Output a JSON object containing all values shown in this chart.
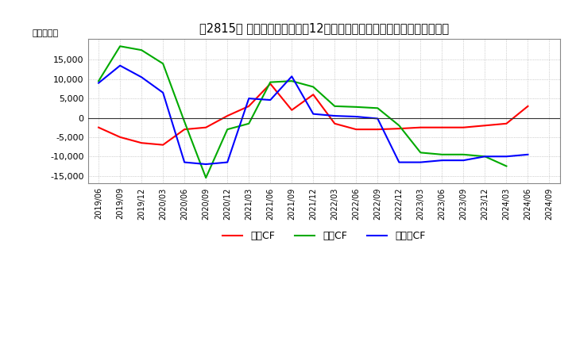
{
  "title_display": "【2815】 キャッシュフローの12か月移動合計の対前年同期増減額の推移",
  "ylabel": "（百万円）",
  "x_labels": [
    "2019/06",
    "2019/09",
    "2019/12",
    "2020/03",
    "2020/06",
    "2020/09",
    "2020/12",
    "2021/03",
    "2021/06",
    "2021/09",
    "2021/12",
    "2022/03",
    "2022/06",
    "2022/09",
    "2022/12",
    "2023/03",
    "2023/06",
    "2023/09",
    "2023/12",
    "2024/03",
    "2024/06",
    "2024/09"
  ],
  "operating_cf": [
    -2500,
    -5000,
    -6500,
    -7000,
    -3000,
    -2500,
    500,
    3000,
    8800,
    2000,
    6000,
    -1500,
    -3000,
    -3000,
    -2800,
    -2500,
    -2500,
    -2500,
    -2000,
    -1500,
    3000,
    null
  ],
  "investing_cf": [
    9500,
    18500,
    17500,
    14000,
    -1000,
    -15500,
    -3000,
    -1500,
    9200,
    9500,
    8000,
    3000,
    2800,
    2500,
    -2000,
    -9000,
    -9500,
    -9500,
    -10000,
    -12500,
    null,
    null
  ],
  "free_cf": [
    9000,
    13500,
    10500,
    6500,
    -11500,
    -12000,
    -11500,
    5000,
    4600,
    10700,
    1000,
    500,
    300,
    -200,
    -11500,
    -11500,
    -11000,
    -11000,
    -10000,
    -10000,
    -9500,
    null
  ],
  "ylim": [
    -17000,
    20500
  ],
  "yticks": [
    -15000,
    -10000,
    -5000,
    0,
    5000,
    10000,
    15000
  ],
  "colors": {
    "operating": "#ff0000",
    "investing": "#00aa00",
    "free": "#0000ff"
  },
  "legend_labels": [
    "営業CF",
    "投資CF",
    "フリーCF"
  ],
  "background_color": "#ffffff",
  "grid_color": "#aaaaaa",
  "title_fontsize": 10.5
}
